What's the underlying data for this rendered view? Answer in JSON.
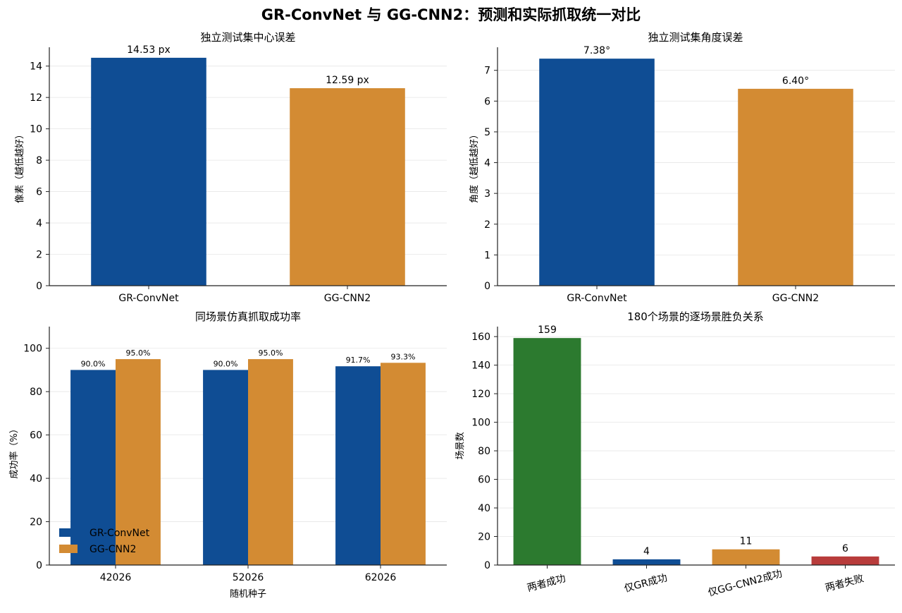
{
  "figure": {
    "title": "GR-ConvNet 与 GG-CNN2：预测和实际抓取统一对比"
  },
  "colors": {
    "gr_convnet": "#0f4d94",
    "gg_cnn2": "#d38b33",
    "both_success": "#2c7a2f",
    "both_fail": "#b83c3b"
  },
  "chart_data": [
    {
      "type": "bar",
      "title": "独立测试集中心误差",
      "xlabel": "",
      "ylabel": "像素（越低越好）",
      "categories": [
        "GR-ConvNet",
        "GG-CNN2"
      ],
      "values": [
        14.53,
        12.59
      ],
      "data_labels": [
        "14.53 px",
        "12.59 px"
      ],
      "colors": [
        "#0f4d94",
        "#d38b33"
      ],
      "ylim": [
        0,
        15.2
      ],
      "yticks": [
        0,
        2,
        4,
        6,
        8,
        10,
        12,
        14
      ],
      "grid": "y"
    },
    {
      "type": "bar",
      "title": "独立测试集角度误差",
      "xlabel": "",
      "ylabel": "角度（越低越好）",
      "categories": [
        "GR-ConvNet",
        "GG-CNN2"
      ],
      "values": [
        7.38,
        6.4
      ],
      "data_labels": [
        "7.38°",
        "6.40°"
      ],
      "colors": [
        "#0f4d94",
        "#d38b33"
      ],
      "ylim": [
        0,
        7.75
      ],
      "yticks": [
        0,
        1,
        2,
        3,
        4,
        5,
        6,
        7
      ],
      "grid": "y"
    },
    {
      "type": "bar",
      "title": "同场景仿真抓取成功率",
      "xlabel": "随机种子",
      "ylabel": "成功率（%）",
      "categories": [
        "42026",
        "52026",
        "62026"
      ],
      "series": [
        {
          "name": "GR-ConvNet",
          "values": [
            90.0,
            90.0,
            91.7
          ],
          "data_labels": [
            "90.0%",
            "90.0%",
            "91.7%"
          ],
          "color": "#0f4d94"
        },
        {
          "name": "GG-CNN2",
          "values": [
            95.0,
            95.0,
            93.3
          ],
          "data_labels": [
            "95.0%",
            "95.0%",
            "93.3%"
          ],
          "color": "#d38b33"
        }
      ],
      "ylim": [
        0,
        110
      ],
      "yticks": [
        0,
        20,
        40,
        60,
        80,
        100
      ],
      "legend": "lower-left",
      "grid": "y"
    },
    {
      "type": "bar",
      "title": "180个场景的逐场景胜负关系",
      "xlabel": "",
      "ylabel": "场景数",
      "categories": [
        "两者成功",
        "仅GR成功",
        "仅GG-CNN2成功",
        "两者失败"
      ],
      "values": [
        159,
        4,
        11,
        6
      ],
      "data_labels": [
        "159",
        "4",
        "11",
        "6"
      ],
      "colors": [
        "#2c7a2f",
        "#0f4d94",
        "#d38b33",
        "#b83c3b"
      ],
      "ylim": [
        0,
        167
      ],
      "yticks": [
        0,
        20,
        40,
        60,
        80,
        100,
        120,
        140,
        160
      ],
      "grid": "y"
    }
  ]
}
